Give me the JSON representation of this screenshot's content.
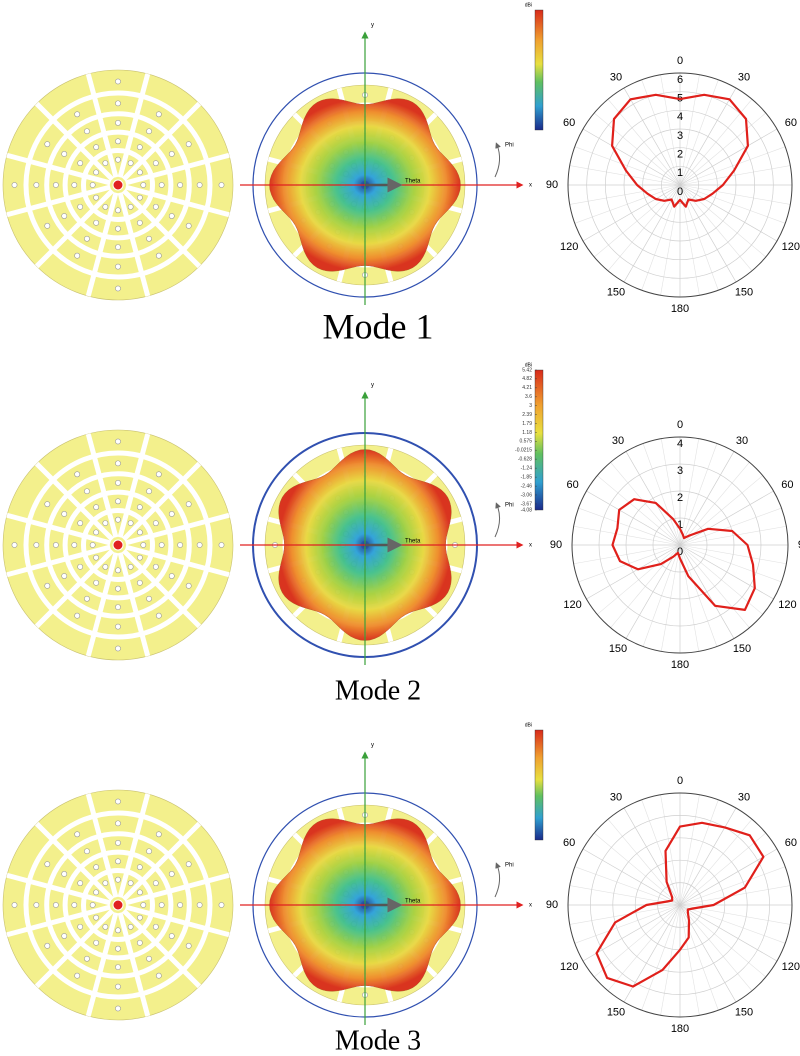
{
  "chart_data": [
    {
      "type": "polar",
      "title": "Mode 1",
      "rlim": [
        0,
        6
      ],
      "rticks": [
        0,
        1,
        2,
        3,
        4,
        5,
        6
      ],
      "angle_ticks": [
        0,
        30,
        60,
        90,
        120,
        150,
        {
          "value": 180,
          "label": "180"
        },
        {
          "value": 210,
          "label": "150"
        },
        {
          "value": 240,
          "label": "120"
        },
        {
          "value": 270,
          "label": "90"
        },
        {
          "value": 300,
          "label": "60"
        },
        {
          "value": 330,
          "label": "30"
        }
      ],
      "series": [
        {
          "color": "#e0201b",
          "theta": [
            0,
            15,
            30,
            45,
            60,
            75,
            90,
            105,
            120,
            135,
            150,
            165,
            180,
            195,
            210,
            225,
            240,
            255,
            270,
            285,
            300,
            315,
            330,
            345
          ],
          "values": [
            4.6,
            5.0,
            5.3,
            5.0,
            4.2,
            3.0,
            2.3,
            1.8,
            1.5,
            1.2,
            0.9,
            1.2,
            0.8,
            1.2,
            0.9,
            1.2,
            1.5,
            1.8,
            2.3,
            3.0,
            4.2,
            5.0,
            5.3,
            5.0
          ]
        }
      ]
    },
    {
      "type": "polar",
      "title": "Mode 2",
      "rlim": [
        0,
        4
      ],
      "rticks": [
        0,
        1,
        2,
        3,
        4
      ],
      "angle_ticks": [
        0,
        30,
        60,
        90,
        120,
        150,
        {
          "value": 180,
          "label": "180"
        },
        {
          "value": 210,
          "label": "150"
        },
        {
          "value": 240,
          "label": "120"
        },
        {
          "value": 270,
          "label": "90"
        },
        {
          "value": 300,
          "label": "60"
        },
        {
          "value": 330,
          "label": "30"
        }
      ],
      "series": [
        {
          "color": "#e0201b",
          "theta": [
            0,
            15,
            30,
            45,
            60,
            75,
            90,
            105,
            120,
            135,
            150,
            165,
            180,
            195,
            210,
            225,
            240,
            255,
            270,
            285,
            300,
            315,
            330,
            345
          ],
          "values": [
            0.6,
            0.4,
            0.3,
            0.5,
            1.2,
            2.0,
            2.5,
            2.8,
            3.2,
            3.4,
            2.6,
            1.2,
            0.5,
            0.3,
            0.5,
            1.0,
            1.8,
            2.3,
            2.5,
            2.4,
            2.6,
            2.4,
            1.8,
            1.0
          ]
        }
      ]
    },
    {
      "type": "polar",
      "title": "Mode 3",
      "rlim": [
        0,
        5
      ],
      "rings": 5,
      "angle_ticks": [
        0,
        30,
        60,
        90,
        120,
        150,
        {
          "value": 180,
          "label": "180"
        },
        {
          "value": 210,
          "label": "150"
        },
        {
          "value": 240,
          "label": "120"
        },
        {
          "value": 270,
          "label": "90"
        },
        {
          "value": 300,
          "label": "60"
        },
        {
          "value": 330,
          "label": "30"
        }
      ],
      "series": [
        {
          "color": "#e0201b",
          "theta": [
            0,
            15,
            30,
            45,
            60,
            75,
            90,
            105,
            120,
            135,
            150,
            165,
            180,
            195,
            210,
            225,
            240,
            255,
            270,
            285,
            300,
            315,
            330,
            345
          ],
          "values": [
            3.5,
            3.8,
            4.0,
            4.4,
            4.3,
            3.0,
            1.5,
            0.6,
            0.4,
            0.5,
            0.8,
            1.5,
            2.0,
            3.0,
            4.2,
            4.6,
            4.3,
            3.0,
            1.5,
            0.6,
            0.4,
            0.5,
            1.2,
            2.5
          ]
        }
      ]
    }
  ],
  "panels": [
    {
      "x_axis": "x",
      "y_axis": "y",
      "theta": "Theta",
      "phi": "Phi",
      "colorbar_unit": "dBi"
    },
    {
      "x_axis": "x",
      "y_axis": "y",
      "theta": "Theta",
      "phi": "Phi",
      "colorbar_unit": "dBi",
      "colorbar_ticks": [
        5.42,
        4.82,
        4.21,
        3.6,
        3,
        2.39,
        1.79,
        1.18,
        0.575,
        -0.0215,
        -0.628,
        -1.24,
        -1.85,
        -2.46,
        -3.06,
        -3.67,
        -4.08
      ]
    },
    {
      "x_axis": "x",
      "y_axis": "y",
      "theta": "Theta",
      "phi": "Phi",
      "colorbar_unit": "dBi"
    }
  ]
}
